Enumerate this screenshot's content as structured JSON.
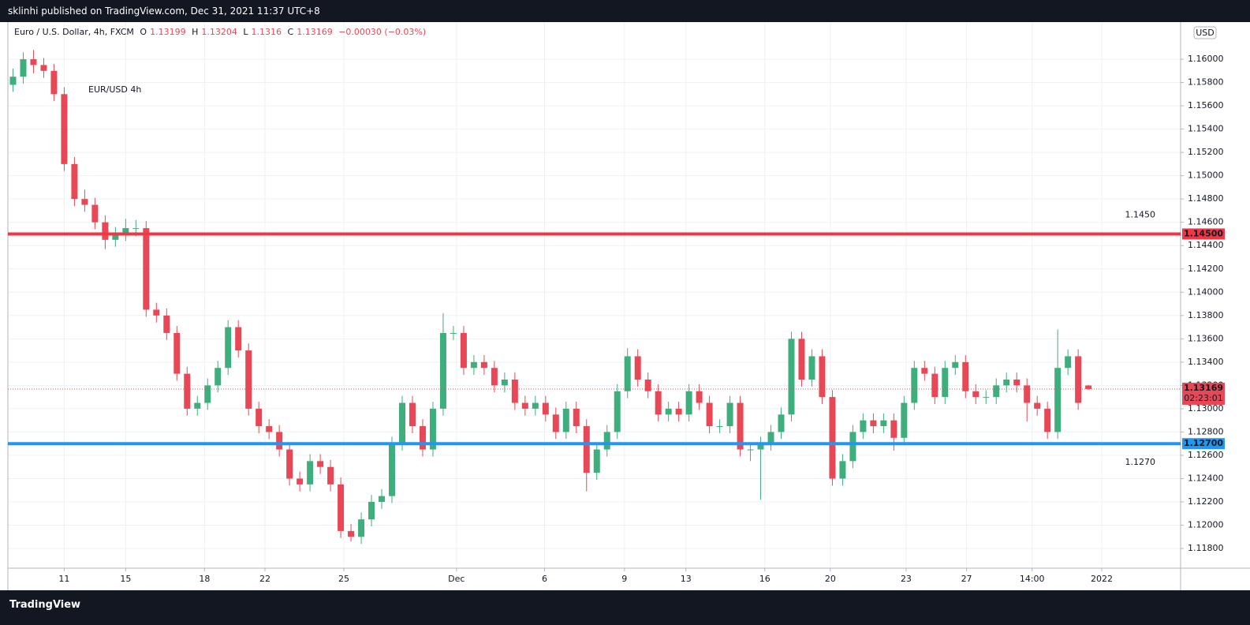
{
  "header": {
    "published": "sklinhi published on TradingView.com, Dec 31, 2021 11:37 UTC+8"
  },
  "footer": {
    "brand": "TradingView"
  },
  "chart_data": {
    "type": "candlestick",
    "title": "EUR/USD 4h",
    "symbol": "Euro / U.S. Dollar, 4h, FXCM",
    "ohlc_letters": [
      "O",
      "H",
      "L",
      "C"
    ],
    "change": "−0.00030 (−0.03%)",
    "currency": "USD",
    "countdown": "02:23:01",
    "up_color": "#3fae7d",
    "down_color": "#e84855",
    "grid": true,
    "xlim": [
      -0.5,
      114
    ],
    "ylim": [
      1.11631,
      1.16305
    ],
    "xticks": [
      {
        "value": 5,
        "label": "11"
      },
      {
        "value": 11,
        "label": "15"
      },
      {
        "value": 18.7,
        "label": "18"
      },
      {
        "value": 24.6,
        "label": "22"
      },
      {
        "value": 32.3,
        "label": "25"
      },
      {
        "value": 43.3,
        "label": "Dec"
      },
      {
        "value": 51.9,
        "label": "6"
      },
      {
        "value": 59.7,
        "label": "9"
      },
      {
        "value": 65.7,
        "label": "13"
      },
      {
        "value": 73.4,
        "label": "16"
      },
      {
        "value": 79.8,
        "label": "20"
      },
      {
        "value": 87.2,
        "label": "23"
      },
      {
        "value": 93.1,
        "label": "27"
      },
      {
        "value": 99.5,
        "label": "14:00"
      },
      {
        "value": 106.3,
        "label": "2022"
      }
    ],
    "yticks": [
      {
        "value": 1.118,
        "label": "1.11800"
      },
      {
        "value": 1.12,
        "label": "1.12000"
      },
      {
        "value": 1.122,
        "label": "1.12200"
      },
      {
        "value": 1.124,
        "label": "1.12400"
      },
      {
        "value": 1.126,
        "label": "1.12600"
      },
      {
        "value": 1.128,
        "label": "1.12800"
      },
      {
        "value": 1.13,
        "label": "1.13000"
      },
      {
        "value": 1.132,
        "label": "1.13200"
      },
      {
        "value": 1.134,
        "label": "1.13400"
      },
      {
        "value": 1.136,
        "label": "1.13600"
      },
      {
        "value": 1.138,
        "label": "1.13800"
      },
      {
        "value": 1.14,
        "label": "1.14000"
      },
      {
        "value": 1.142,
        "label": "1.14200"
      },
      {
        "value": 1.144,
        "label": "1.14400"
      },
      {
        "value": 1.146,
        "label": "1.14600"
      },
      {
        "value": 1.148,
        "label": "1.14800"
      },
      {
        "value": 1.15,
        "label": "1.15000"
      },
      {
        "value": 1.152,
        "label": "1.15200"
      },
      {
        "value": 1.154,
        "label": "1.15400"
      },
      {
        "value": 1.156,
        "label": "1.15600"
      },
      {
        "value": 1.158,
        "label": "1.15800"
      },
      {
        "value": 1.16,
        "label": "1.16000"
      }
    ],
    "levels": [
      {
        "value": 1.145,
        "label": "1.1450",
        "axis_label": "1.14500",
        "color": "#f23645"
      },
      {
        "value": 1.127,
        "label": "1.1270",
        "axis_label": "1.12700",
        "color": "#2196f3"
      }
    ],
    "ohlc": [
      [
        1.1578,
        1.1592,
        1.1572,
        1.1585
      ],
      [
        1.1585,
        1.1606,
        1.1579,
        1.16
      ],
      [
        1.16,
        1.1608,
        1.1588,
        1.1595
      ],
      [
        1.1595,
        1.1601,
        1.1584,
        1.159
      ],
      [
        1.159,
        1.1596,
        1.1564,
        1.157
      ],
      [
        1.157,
        1.1576,
        1.1504,
        1.151
      ],
      [
        1.151,
        1.1516,
        1.1474,
        1.148
      ],
      [
        1.148,
        1.1488,
        1.1469,
        1.1475
      ],
      [
        1.1475,
        1.1481,
        1.1454,
        1.146
      ],
      [
        1.146,
        1.1466,
        1.1437,
        1.1445
      ],
      [
        1.1445,
        1.1456,
        1.1439,
        1.145
      ],
      [
        1.145,
        1.1463,
        1.1444,
        1.1455
      ],
      [
        1.1455,
        1.1462,
        1.1448,
        1.1455
      ],
      [
        1.1455,
        1.1461,
        1.1379,
        1.1385
      ],
      [
        1.1385,
        1.1391,
        1.1374,
        1.138
      ],
      [
        1.138,
        1.1386,
        1.1359,
        1.1365
      ],
      [
        1.1365,
        1.1371,
        1.1324,
        1.133
      ],
      [
        1.133,
        1.1336,
        1.1294,
        1.13
      ],
      [
        1.13,
        1.1311,
        1.1294,
        1.1305
      ],
      [
        1.1305,
        1.1326,
        1.1299,
        1.132
      ],
      [
        1.132,
        1.1341,
        1.1314,
        1.1335
      ],
      [
        1.1335,
        1.1376,
        1.1329,
        1.137
      ],
      [
        1.137,
        1.1376,
        1.1344,
        1.135
      ],
      [
        1.135,
        1.1356,
        1.1294,
        1.13
      ],
      [
        1.13,
        1.1306,
        1.1279,
        1.1285
      ],
      [
        1.1285,
        1.1291,
        1.1274,
        1.128
      ],
      [
        1.128,
        1.1286,
        1.1259,
        1.1265
      ],
      [
        1.1265,
        1.1271,
        1.1234,
        1.124
      ],
      [
        1.124,
        1.1246,
        1.1229,
        1.1235
      ],
      [
        1.1235,
        1.1261,
        1.1229,
        1.1255
      ],
      [
        1.1255,
        1.1261,
        1.1244,
        1.125
      ],
      [
        1.125,
        1.1256,
        1.1229,
        1.1235
      ],
      [
        1.1235,
        1.1241,
        1.1189,
        1.1195
      ],
      [
        1.1195,
        1.1201,
        1.1186,
        1.119
      ],
      [
        1.119,
        1.1211,
        1.1184,
        1.1205
      ],
      [
        1.1205,
        1.1226,
        1.1199,
        1.122
      ],
      [
        1.122,
        1.1231,
        1.1214,
        1.1225
      ],
      [
        1.1225,
        1.1276,
        1.1219,
        1.127
      ],
      [
        1.127,
        1.1311,
        1.1264,
        1.1305
      ],
      [
        1.1305,
        1.1311,
        1.1279,
        1.1285
      ],
      [
        1.1285,
        1.1291,
        1.1259,
        1.1265
      ],
      [
        1.1265,
        1.1306,
        1.1259,
        1.13
      ],
      [
        1.13,
        1.1382,
        1.1294,
        1.1365
      ],
      [
        1.1365,
        1.1371,
        1.1359,
        1.1365
      ],
      [
        1.1365,
        1.1371,
        1.1329,
        1.1335
      ],
      [
        1.1335,
        1.1346,
        1.1329,
        1.134
      ],
      [
        1.134,
        1.1346,
        1.1329,
        1.1335
      ],
      [
        1.1335,
        1.1341,
        1.1314,
        1.132
      ],
      [
        1.132,
        1.1331,
        1.1314,
        1.1325
      ],
      [
        1.1325,
        1.1331,
        1.1299,
        1.1305
      ],
      [
        1.1305,
        1.1311,
        1.1294,
        1.13
      ],
      [
        1.13,
        1.1311,
        1.1294,
        1.1305
      ],
      [
        1.1305,
        1.1311,
        1.1289,
        1.1295
      ],
      [
        1.1295,
        1.1301,
        1.1274,
        1.128
      ],
      [
        1.128,
        1.1306,
        1.1274,
        1.13
      ],
      [
        1.13,
        1.1306,
        1.1279,
        1.1285
      ],
      [
        1.1285,
        1.1291,
        1.1229,
        1.1245
      ],
      [
        1.1245,
        1.1271,
        1.1239,
        1.1265
      ],
      [
        1.1265,
        1.1286,
        1.1259,
        1.128
      ],
      [
        1.128,
        1.1321,
        1.1274,
        1.1315
      ],
      [
        1.1315,
        1.1352,
        1.1309,
        1.1345
      ],
      [
        1.1345,
        1.1351,
        1.1319,
        1.1325
      ],
      [
        1.1325,
        1.1331,
        1.1309,
        1.1315
      ],
      [
        1.1315,
        1.1321,
        1.1289,
        1.1295
      ],
      [
        1.1295,
        1.1306,
        1.1289,
        1.13
      ],
      [
        1.13,
        1.1306,
        1.1289,
        1.1295
      ],
      [
        1.1295,
        1.1321,
        1.1289,
        1.1315
      ],
      [
        1.1315,
        1.1321,
        1.1299,
        1.1305
      ],
      [
        1.1305,
        1.1311,
        1.1279,
        1.1285
      ],
      [
        1.1285,
        1.1291,
        1.1279,
        1.1285
      ],
      [
        1.1285,
        1.1311,
        1.1279,
        1.1305
      ],
      [
        1.1305,
        1.1311,
        1.1259,
        1.1265
      ],
      [
        1.1265,
        1.1271,
        1.1255,
        1.1265
      ],
      [
        1.1265,
        1.1276,
        1.1222,
        1.127
      ],
      [
        1.127,
        1.1286,
        1.1264,
        1.128
      ],
      [
        1.128,
        1.1301,
        1.1274,
        1.1295
      ],
      [
        1.1295,
        1.1366,
        1.1289,
        1.136
      ],
      [
        1.136,
        1.1366,
        1.1319,
        1.1325
      ],
      [
        1.1325,
        1.1351,
        1.1319,
        1.1345
      ],
      [
        1.1345,
        1.1351,
        1.1304,
        1.131
      ],
      [
        1.131,
        1.1316,
        1.1234,
        1.124
      ],
      [
        1.124,
        1.1261,
        1.1234,
        1.1255
      ],
      [
        1.1255,
        1.1286,
        1.1249,
        1.128
      ],
      [
        1.128,
        1.1296,
        1.1274,
        1.129
      ],
      [
        1.129,
        1.1296,
        1.1279,
        1.1285
      ],
      [
        1.1285,
        1.1296,
        1.1279,
        1.129
      ],
      [
        1.129,
        1.1296,
        1.1264,
        1.1275
      ],
      [
        1.1275,
        1.1311,
        1.1269,
        1.1305
      ],
      [
        1.1305,
        1.1341,
        1.1299,
        1.1335
      ],
      [
        1.1335,
        1.1341,
        1.1324,
        1.133
      ],
      [
        1.133,
        1.1336,
        1.1304,
        1.131
      ],
      [
        1.131,
        1.1341,
        1.1304,
        1.1335
      ],
      [
        1.1335,
        1.1346,
        1.1329,
        1.134
      ],
      [
        1.134,
        1.1346,
        1.1309,
        1.1315
      ],
      [
        1.1315,
        1.1321,
        1.1304,
        1.131
      ],
      [
        1.131,
        1.1316,
        1.1304,
        1.131
      ],
      [
        1.131,
        1.1326,
        1.1304,
        1.132
      ],
      [
        1.132,
        1.1331,
        1.1314,
        1.1325
      ],
      [
        1.1325,
        1.1331,
        1.1314,
        1.132
      ],
      [
        1.132,
        1.1326,
        1.1289,
        1.1305
      ],
      [
        1.1305,
        1.1311,
        1.1294,
        1.13
      ],
      [
        1.13,
        1.1306,
        1.1274,
        1.128
      ],
      [
        1.128,
        1.1368,
        1.1274,
        1.1335
      ],
      [
        1.1335,
        1.1351,
        1.1329,
        1.1345
      ],
      [
        1.1345,
        1.1351,
        1.1299,
        1.1305
      ],
      [
        1.13199,
        1.13204,
        1.1316,
        1.13169
      ]
    ]
  }
}
